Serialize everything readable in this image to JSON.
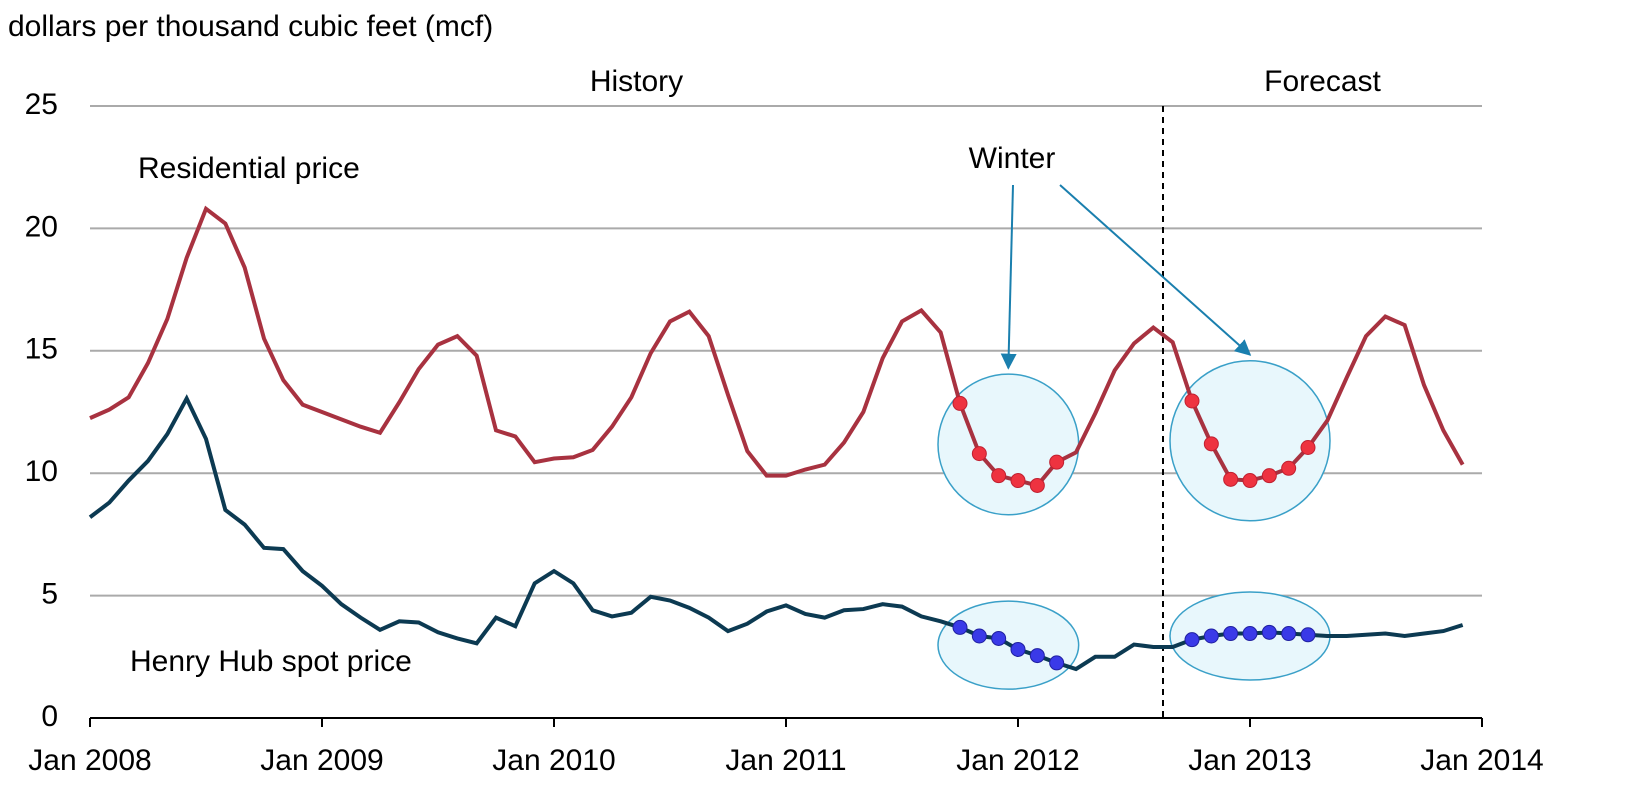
{
  "chart_data": {
    "type": "line",
    "y_axis_label": "dollars per thousand cubic feet (mcf)",
    "x": [
      "Jan 2008",
      "Feb 2008",
      "Mar 2008",
      "Apr 2008",
      "May 2008",
      "Jun 2008",
      "Jul 2008",
      "Aug 2008",
      "Sep 2008",
      "Oct 2008",
      "Nov 2008",
      "Dec 2008",
      "Jan 2009",
      "Feb 2009",
      "Mar 2009",
      "Apr 2009",
      "May 2009",
      "Jun 2009",
      "Jul 2009",
      "Aug 2009",
      "Sep 2009",
      "Oct 2009",
      "Nov 2009",
      "Dec 2009",
      "Jan 2010",
      "Feb 2010",
      "Mar 2010",
      "Apr 2010",
      "May 2010",
      "Jun 2010",
      "Jul 2010",
      "Aug 2010",
      "Sep 2010",
      "Oct 2010",
      "Nov 2010",
      "Dec 2010",
      "Jan 2011",
      "Feb 2011",
      "Mar 2011",
      "Apr 2011",
      "May 2011",
      "Jun 2011",
      "Jul 2011",
      "Aug 2011",
      "Sep 2011",
      "Oct 2011",
      "Nov 2011",
      "Dec 2011",
      "Jan 2012",
      "Feb 2012",
      "Mar 2012",
      "Apr 2012",
      "May 2012",
      "Jun 2012",
      "Jul 2012",
      "Aug 2012",
      "Sep 2012",
      "Oct 2012",
      "Nov 2012",
      "Dec 2012",
      "Jan 2013",
      "Feb 2013",
      "Mar 2013",
      "Apr 2013",
      "May 2013",
      "Jun 2013",
      "Jul 2013",
      "Aug 2013",
      "Sep 2013",
      "Oct 2013",
      "Nov 2013",
      "Dec 2013"
    ],
    "series": [
      {
        "name": "Residential price",
        "color": "#a83240",
        "values": [
          12.25,
          12.6,
          13.1,
          14.5,
          16.3,
          18.8,
          20.8,
          20.2,
          18.4,
          15.5,
          13.8,
          12.8,
          12.5,
          12.2,
          11.9,
          11.65,
          12.9,
          14.25,
          15.25,
          15.6,
          14.8,
          11.75,
          11.5,
          10.45,
          10.6,
          10.65,
          10.95,
          11.9,
          13.1,
          14.9,
          16.2,
          16.6,
          15.6,
          13.2,
          10.9,
          9.9,
          9.9,
          10.15,
          10.35,
          11.25,
          12.5,
          14.7,
          16.2,
          16.65,
          15.75,
          12.85,
          10.8,
          9.9,
          9.7,
          9.5,
          10.45,
          10.85,
          12.45,
          14.2,
          15.3,
          15.95,
          15.35,
          12.95,
          11.2,
          9.75,
          9.7,
          9.9,
          10.2,
          11.05,
          12.15,
          13.9,
          15.6,
          16.4,
          16.05,
          13.6,
          11.75,
          10.35
        ]
      },
      {
        "name": "Henry Hub spot price",
        "color": "#0c3a52",
        "values": [
          8.2,
          8.8,
          9.7,
          10.5,
          11.6,
          13.05,
          11.4,
          8.5,
          7.9,
          6.95,
          6.9,
          6.0,
          5.4,
          4.65,
          4.1,
          3.6,
          3.95,
          3.9,
          3.5,
          3.25,
          3.05,
          4.1,
          3.75,
          5.5,
          6.0,
          5.5,
          4.4,
          4.15,
          4.3,
          4.95,
          4.8,
          4.5,
          4.1,
          3.55,
          3.85,
          4.35,
          4.6,
          4.25,
          4.1,
          4.4,
          4.45,
          4.65,
          4.55,
          4.15,
          3.95,
          3.7,
          3.35,
          3.25,
          2.8,
          2.55,
          2.25,
          2.0,
          2.5,
          2.5,
          3.0,
          2.9,
          2.9,
          3.2,
          3.35,
          3.45,
          3.45,
          3.5,
          3.45,
          3.4,
          3.35,
          3.35,
          3.4,
          3.45,
          3.35,
          3.45,
          3.55,
          3.8
        ]
      }
    ],
    "ylim": [
      0,
      25
    ],
    "yticks": [
      0,
      5,
      10,
      15,
      20,
      25
    ],
    "grid": true,
    "xticks": [
      "Jan 2008",
      "Jan 2009",
      "Jan 2010",
      "Jan 2011",
      "Jan 2012",
      "Jan 2013",
      "Jan 2014"
    ],
    "history_label": "History",
    "forecast_label": "Forecast",
    "forecast_start": "Sep 2012",
    "winter_label": "Winter",
    "winter_color": "#1a8bc4",
    "winter_ranges": [
      [
        "Oct 2011",
        "Mar 2012"
      ],
      [
        "Oct 2012",
        "Apr 2013"
      ]
    ]
  }
}
